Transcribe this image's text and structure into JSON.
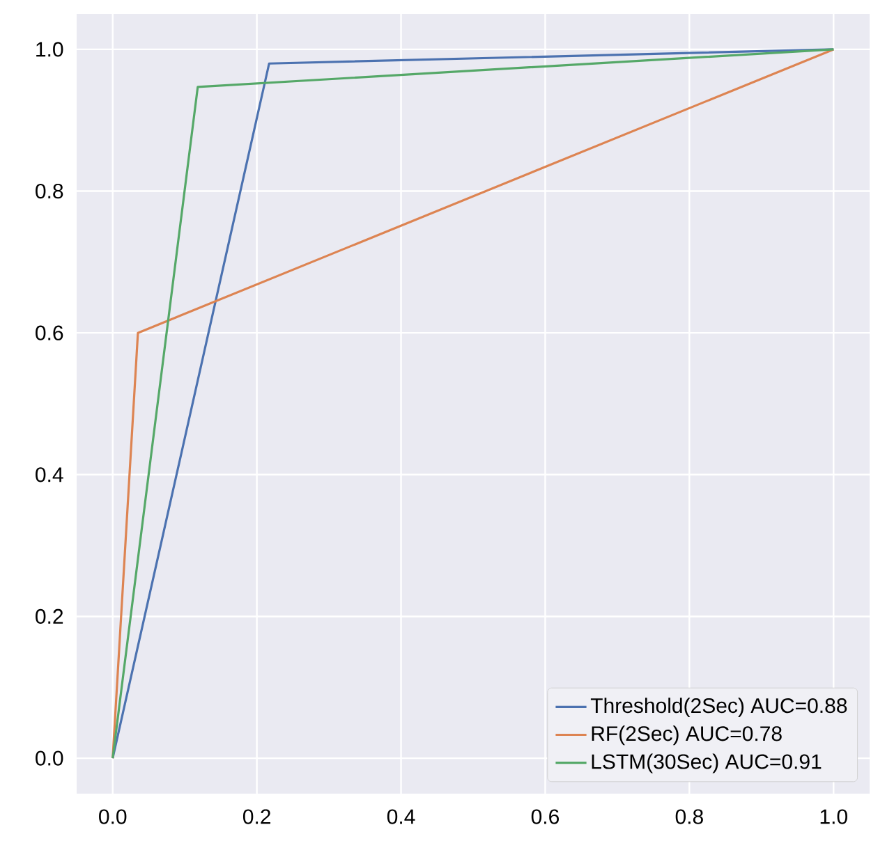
{
  "chart_data": {
    "type": "line",
    "xlim": [
      -0.05,
      1.05
    ],
    "ylim": [
      -0.05,
      1.05
    ],
    "xticks": [
      {
        "value": 0,
        "label": "0.0"
      },
      {
        "value": 0.2,
        "label": "0.2"
      },
      {
        "value": 0.4,
        "label": "0.4"
      },
      {
        "value": 0.6,
        "label": "0.6"
      },
      {
        "value": 0.8,
        "label": "0.8"
      },
      {
        "value": 1,
        "label": "1.0"
      }
    ],
    "yticks": [
      {
        "value": 0,
        "label": "0.0"
      },
      {
        "value": 0.2,
        "label": "0.2"
      },
      {
        "value": 0.4,
        "label": "0.4"
      },
      {
        "value": 0.6,
        "label": "0.6"
      },
      {
        "value": 0.8,
        "label": "0.8"
      },
      {
        "value": 1,
        "label": "1.0"
      }
    ],
    "grid": true,
    "legend": "bottom right",
    "line_style": "solid",
    "series": [
      {
        "name": "Threshold(2Sec) AUC=0.88",
        "color": "#4c72b0",
        "x": [
          0,
          0.217,
          1
        ],
        "values": [
          0,
          0.98,
          1
        ]
      },
      {
        "name": "RF(2Sec) AUC=0.78",
        "color": "#dd8452",
        "x": [
          0,
          0.035,
          1
        ],
        "values": [
          0,
          0.6,
          1
        ]
      },
      {
        "name": "LSTM(30Sec) AUC=0.91",
        "color": "#55a868",
        "x": [
          0,
          0.118,
          1
        ],
        "values": [
          0,
          0.947,
          1
        ]
      }
    ]
  }
}
